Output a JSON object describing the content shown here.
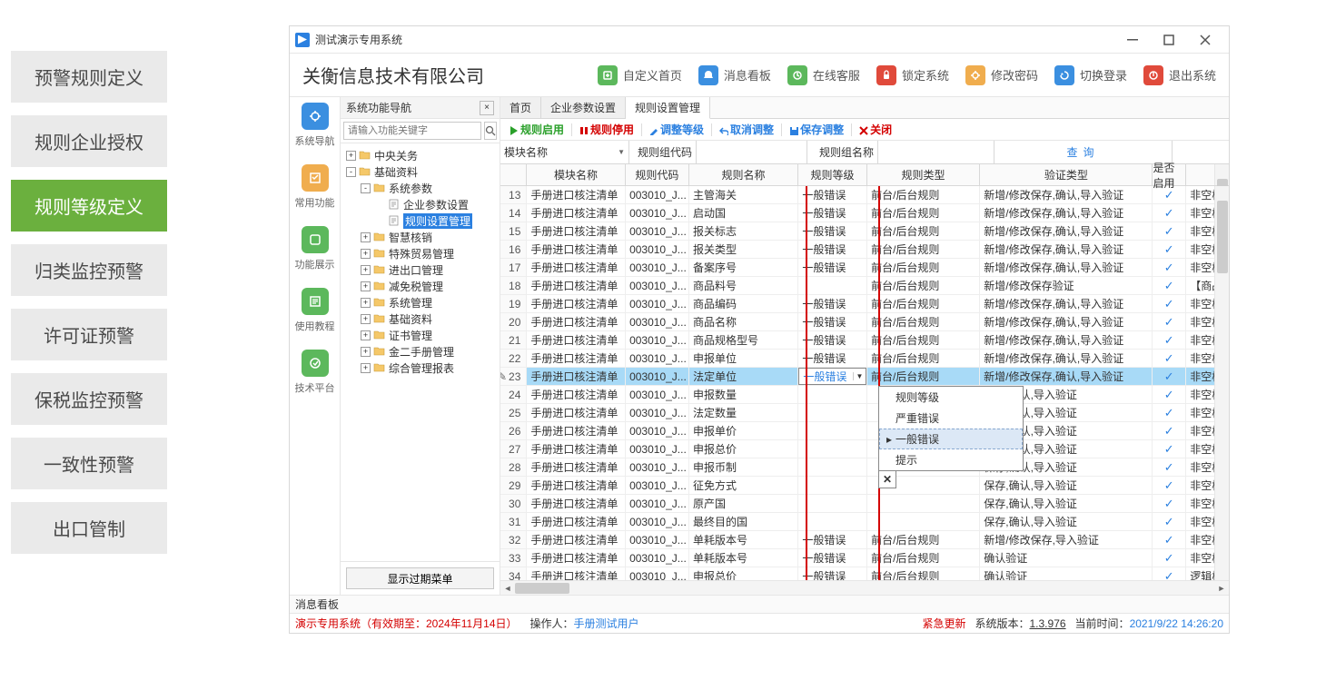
{
  "ext_menu": {
    "items": [
      "预警规则定义",
      "规则企业授权",
      "规则等级定义",
      "归类监控预警",
      "许可证预警",
      "保税监控预警",
      "一致性预警",
      "出口管制"
    ],
    "active_index": 2
  },
  "titlebar": {
    "title": "测试演示专用系统"
  },
  "header": {
    "company": "关衡信息技术有限公司",
    "buttons": [
      {
        "label": "自定义首页",
        "color": "#5cb85c"
      },
      {
        "label": "消息看板",
        "color": "#3b8fe0"
      },
      {
        "label": "在线客服",
        "color": "#5cb85c"
      },
      {
        "label": "锁定系统",
        "color": "#e04a3b"
      },
      {
        "label": "修改密码",
        "color": "#f0ad4e"
      },
      {
        "label": "切换登录",
        "color": "#3b8fe0"
      },
      {
        "label": "退出系统",
        "color": "#e04a3b"
      }
    ]
  },
  "leftnav": [
    {
      "label": "系统导航",
      "color": "#3b8fe0"
    },
    {
      "label": "常用功能",
      "color": "#f0ad4e"
    },
    {
      "label": "功能展示",
      "color": "#5cb85c"
    },
    {
      "label": "使用教程",
      "color": "#5cb85c"
    },
    {
      "label": "技术平台",
      "color": "#5cb85c"
    }
  ],
  "tree": {
    "title": "系统功能导航",
    "search_placeholder": "请输入功能关键字",
    "footer_button": "显示过期菜单",
    "nodes": [
      {
        "depth": 0,
        "exp": "+",
        "label": "中央关务"
      },
      {
        "depth": 0,
        "exp": "-",
        "label": "基础资料"
      },
      {
        "depth": 1,
        "exp": "-",
        "label": "系统参数"
      },
      {
        "depth": 2,
        "exp": "",
        "label": "企业参数设置"
      },
      {
        "depth": 2,
        "exp": "",
        "label": "规则设置管理",
        "selected": true
      },
      {
        "depth": 1,
        "exp": "+",
        "label": "智慧核销"
      },
      {
        "depth": 1,
        "exp": "+",
        "label": "特殊贸易管理"
      },
      {
        "depth": 1,
        "exp": "+",
        "label": "进出口管理"
      },
      {
        "depth": 1,
        "exp": "+",
        "label": "减免税管理"
      },
      {
        "depth": 1,
        "exp": "+",
        "label": "系统管理"
      },
      {
        "depth": 1,
        "exp": "+",
        "label": "基础资料"
      },
      {
        "depth": 1,
        "exp": "+",
        "label": "证书管理"
      },
      {
        "depth": 1,
        "exp": "+",
        "label": "金二手册管理"
      },
      {
        "depth": 1,
        "exp": "+",
        "label": "综合管理报表"
      }
    ]
  },
  "tabs": [
    "首页",
    "企业参数设置",
    "规则设置管理"
  ],
  "active_tab": 2,
  "toolbar": [
    {
      "label": "规则启用",
      "color": "#2aa02a",
      "icon": "play"
    },
    {
      "label": "规则停用",
      "color": "#d40000",
      "icon": "pause"
    },
    {
      "label": "调整等级",
      "color": "#2b80e0",
      "icon": "pencil"
    },
    {
      "label": "取消调整",
      "color": "#2b80e0",
      "icon": "undo"
    },
    {
      "label": "保存调整",
      "color": "#2b80e0",
      "icon": "save"
    },
    {
      "label": "关闭",
      "color": "#d40000",
      "icon": "close"
    }
  ],
  "filters": {
    "f1": "模块名称",
    "f2": "规则组代码",
    "f3": "规则组名称",
    "query": "查询"
  },
  "grid": {
    "headers": [
      "模块名称",
      "规则代码",
      "规则名称",
      "规则等级",
      "规则类型",
      "验证类型",
      "是否启用",
      ""
    ],
    "rows": [
      {
        "n": 13,
        "mod": "手册进口核注清单",
        "code": "003010_J...",
        "name": "主管海关",
        "level": "一般错误",
        "type": "前台/后台规则",
        "valid": "新增/修改保存,确认,导入验证",
        "en": true,
        "blank": "非空校"
      },
      {
        "n": 14,
        "mod": "手册进口核注清单",
        "code": "003010_J...",
        "name": "启动国",
        "level": "一般错误",
        "type": "前台/后台规则",
        "valid": "新增/修改保存,确认,导入验证",
        "en": true,
        "blank": "非空校"
      },
      {
        "n": 15,
        "mod": "手册进口核注清单",
        "code": "003010_J...",
        "name": "报关标志",
        "level": "一般错误",
        "type": "前台/后台规则",
        "valid": "新增/修改保存,确认,导入验证",
        "en": true,
        "blank": "非空校"
      },
      {
        "n": 16,
        "mod": "手册进口核注清单",
        "code": "003010_J...",
        "name": "报关类型",
        "level": "一般错误",
        "type": "前台/后台规则",
        "valid": "新增/修改保存,确认,导入验证",
        "en": true,
        "blank": "非空校"
      },
      {
        "n": 17,
        "mod": "手册进口核注清单",
        "code": "003010_J...",
        "name": "备案序号",
        "level": "一般错误",
        "type": "前台/后台规则",
        "valid": "新增/修改保存,确认,导入验证",
        "en": true,
        "blank": "非空校"
      },
      {
        "n": 18,
        "mod": "手册进口核注清单",
        "code": "003010_J...",
        "name": "商品料号",
        "level": "",
        "type": "前台/后台规则",
        "valid": "新增/修改保存验证",
        "en": true,
        "blank": "【商品"
      },
      {
        "n": 19,
        "mod": "手册进口核注清单",
        "code": "003010_J...",
        "name": "商品编码",
        "level": "一般错误",
        "type": "前台/后台规则",
        "valid": "新增/修改保存,确认,导入验证",
        "en": true,
        "blank": "非空校"
      },
      {
        "n": 20,
        "mod": "手册进口核注清单",
        "code": "003010_J...",
        "name": "商品名称",
        "level": "一般错误",
        "type": "前台/后台规则",
        "valid": "新增/修改保存,确认,导入验证",
        "en": true,
        "blank": "非空校"
      },
      {
        "n": 21,
        "mod": "手册进口核注清单",
        "code": "003010_J...",
        "name": "商品规格型号",
        "level": "一般错误",
        "type": "前台/后台规则",
        "valid": "新增/修改保存,确认,导入验证",
        "en": true,
        "blank": "非空校"
      },
      {
        "n": 22,
        "mod": "手册进口核注清单",
        "code": "003010_J...",
        "name": "申报单位",
        "level": "一般错误",
        "type": "前台/后台规则",
        "valid": "新增/修改保存,确认,导入验证",
        "en": true,
        "blank": "非空校"
      },
      {
        "n": 23,
        "mod": "手册进口核注清单",
        "code": "003010_J...",
        "name": "法定单位",
        "level": "一般错误",
        "type": "前台/后台规则",
        "valid": "新增/修改保存,确认,导入验证",
        "en": true,
        "blank": "非空校",
        "sel": true,
        "edit": true
      },
      {
        "n": 24,
        "mod": "手册进口核注清单",
        "code": "003010_J...",
        "name": "申报数量",
        "level": "",
        "type": "",
        "valid": "保存,确认,导入验证",
        "en": true,
        "blank": "非空校"
      },
      {
        "n": 25,
        "mod": "手册进口核注清单",
        "code": "003010_J...",
        "name": "法定数量",
        "level": "",
        "type": "",
        "valid": "保存,确认,导入验证",
        "en": true,
        "blank": "非空校"
      },
      {
        "n": 26,
        "mod": "手册进口核注清单",
        "code": "003010_J...",
        "name": "申报单价",
        "level": "",
        "type": "",
        "valid": "保存,确认,导入验证",
        "en": true,
        "blank": "非空校"
      },
      {
        "n": 27,
        "mod": "手册进口核注清单",
        "code": "003010_J...",
        "name": "申报总价",
        "level": "",
        "type": "",
        "valid": "保存,确认,导入验证",
        "en": true,
        "blank": "非空校"
      },
      {
        "n": 28,
        "mod": "手册进口核注清单",
        "code": "003010_J...",
        "name": "申报币制",
        "level": "",
        "type": "",
        "valid": "保存,确认,导入验证",
        "en": true,
        "blank": "非空校"
      },
      {
        "n": 29,
        "mod": "手册进口核注清单",
        "code": "003010_J...",
        "name": "征免方式",
        "level": "",
        "type": "",
        "valid": "保存,确认,导入验证",
        "en": true,
        "blank": "非空校"
      },
      {
        "n": 30,
        "mod": "手册进口核注清单",
        "code": "003010_J...",
        "name": "原产国",
        "level": "",
        "type": "",
        "valid": "保存,确认,导入验证",
        "en": true,
        "blank": "非空校"
      },
      {
        "n": 31,
        "mod": "手册进口核注清单",
        "code": "003010_J...",
        "name": "最终目的国",
        "level": "",
        "type": "",
        "valid": "保存,确认,导入验证",
        "en": true,
        "blank": "非空校"
      },
      {
        "n": 32,
        "mod": "手册进口核注清单",
        "code": "003010_J...",
        "name": "单耗版本号",
        "level": "一般错误",
        "type": "前台/后台规则",
        "valid": "新增/修改保存,导入验证",
        "en": true,
        "blank": "非空校"
      },
      {
        "n": 33,
        "mod": "手册进口核注清单",
        "code": "003010_J...",
        "name": "单耗版本号",
        "level": "一般错误",
        "type": "前台/后台规则",
        "valid": "确认验证",
        "en": true,
        "blank": "非空校"
      },
      {
        "n": 34,
        "mod": "手册进口核注清单",
        "code": "003010_J...",
        "name": "申报总价",
        "level": "一般错误",
        "type": "前台/后台规则",
        "valid": "确认验证",
        "en": true,
        "blank": "逻辑校"
      }
    ],
    "dropdown": {
      "value": "一般错误",
      "options": [
        "规则等级",
        "严重错误",
        "一般错误",
        "提示"
      ],
      "hover_index": 2
    }
  },
  "msgbar": "消息看板",
  "statusbar": {
    "demo": "演示专用系统（有效期至：2024年11月14日）",
    "operator_label": "操作人：",
    "operator": "手册测试用户",
    "emergency": "紧急更新",
    "version_label": "系统版本：",
    "version": "1.3.976",
    "time_label": "当前时间：",
    "time": "2021/9/22 14:26:20"
  }
}
